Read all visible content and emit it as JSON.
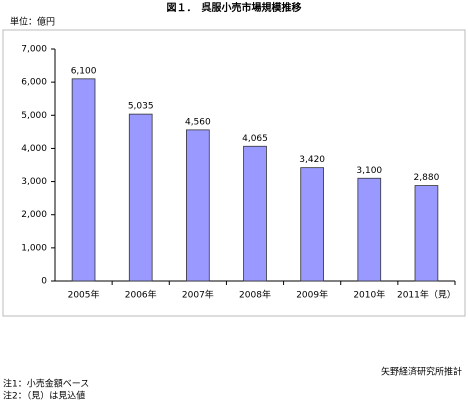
{
  "chart_data": {
    "type": "bar",
    "title": "図１．　呉服小売市場規模推移",
    "unit": "単位：億円",
    "categories": [
      "2005年",
      "2006年",
      "2007年",
      "2008年",
      "2009年",
      "2010年",
      "2011年（見）"
    ],
    "values": [
      6100,
      5035,
      4560,
      4065,
      3420,
      3100,
      2880
    ],
    "value_labels": [
      "6,100",
      "5,035",
      "4,560",
      "4,065",
      "3,420",
      "3,100",
      "2,880"
    ],
    "color": "#9999ff",
    "ylim": [
      0,
      7000
    ],
    "yticks": [
      0,
      {
        "value": 1000,
        "label": "1,000"
      },
      {
        "value": 2000,
        "label": "2,000"
      },
      {
        "value": 3000,
        "label": "3,000"
      },
      {
        "value": 4000,
        "label": "4,000"
      },
      {
        "value": 5000,
        "label": "5,000"
      },
      {
        "value": 6000,
        "label": "6,000"
      },
      {
        "value": 7000,
        "label": "7,000"
      }
    ],
    "grid": false
  },
  "notes": [
    "注1：小売金額ベース",
    "注2：（見）は見込値"
  ],
  "source": "矢野経済研究所推計"
}
